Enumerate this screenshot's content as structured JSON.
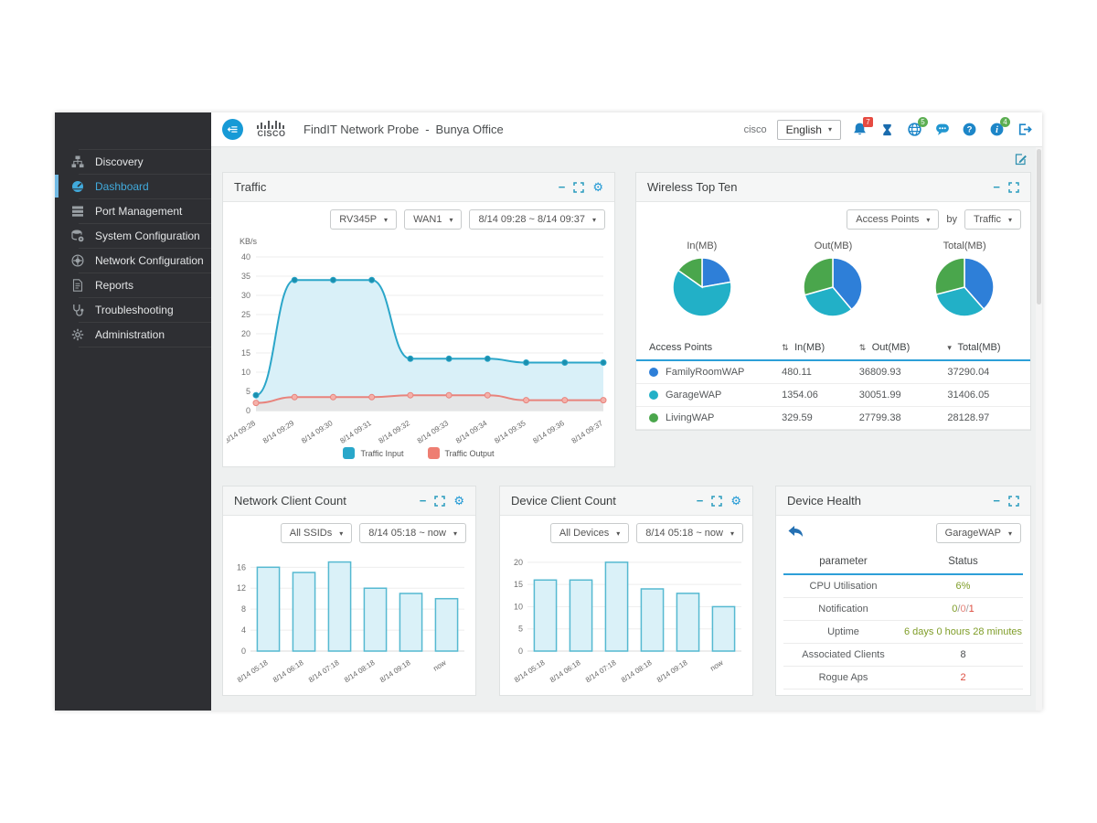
{
  "header": {
    "brand": "CISCO",
    "app_title": "FindIT Network Probe",
    "separator": "-",
    "site_name": "Bunya Office",
    "username": "cisco",
    "language": "English",
    "notification_badge": "7",
    "globe_badge": "5",
    "info_badge": "4"
  },
  "sidebar": {
    "items": [
      {
        "label": "Discovery",
        "icon": "sitemap-icon",
        "active": false
      },
      {
        "label": "Dashboard",
        "icon": "dashboard-icon",
        "active": true
      },
      {
        "label": "Port Management",
        "icon": "rows-icon",
        "active": false
      },
      {
        "label": "System Configuration",
        "icon": "database-gear-icon",
        "active": false
      },
      {
        "label": "Network Configuration",
        "icon": "gear-circle-icon",
        "active": false
      },
      {
        "label": "Reports",
        "icon": "document-icon",
        "active": false
      },
      {
        "label": "Troubleshooting",
        "icon": "stethoscope-icon",
        "active": false
      },
      {
        "label": "Administration",
        "icon": "gear-icon",
        "active": false
      }
    ]
  },
  "panels": {
    "traffic": {
      "title": "Traffic",
      "device_filter": "RV345P",
      "interface_filter": "WAN1",
      "time_range": "8/14 09:28 ~ 8/14 09:37"
    },
    "wireless": {
      "title": "Wireless Top Ten",
      "group_filter": "Access Points",
      "by_label": "by",
      "metric_filter": "Traffic",
      "table": {
        "headers": [
          {
            "label": "Access Points",
            "sort": "none"
          },
          {
            "label": "In(MB)",
            "sort": "both"
          },
          {
            "label": "Out(MB)",
            "sort": "both"
          },
          {
            "label": "Total(MB)",
            "sort": "desc"
          }
        ],
        "rows": [
          {
            "name": "FamilyRoomWAP",
            "color": "#2e7fd8",
            "in": "480.11",
            "out": "36809.93",
            "total": "37290.04"
          },
          {
            "name": "GarageWAP",
            "color": "#22b0c7",
            "in": "1354.06",
            "out": "30051.99",
            "total": "31406.05"
          },
          {
            "name": "LivingWAP",
            "color": "#4aa64c",
            "in": "329.59",
            "out": "27799.38",
            "total": "28128.97"
          }
        ]
      }
    },
    "network_client_count": {
      "title": "Network Client Count",
      "ssid_filter": "All SSIDs",
      "time_range": "8/14 05:18 ~ now"
    },
    "device_client_count": {
      "title": "Device Client Count",
      "device_filter": "All Devices",
      "time_range": "8/14 05:18 ~ now"
    },
    "device_health": {
      "title": "Device Health",
      "device_filter": "GarageWAP",
      "headers": [
        "parameter",
        "Status"
      ],
      "rows": [
        {
          "parameter": "CPU Utilisation",
          "status_parts": [
            {
              "text": "6%",
              "color": "#7f9d28"
            }
          ]
        },
        {
          "parameter": "Notification",
          "status_parts": [
            {
              "text": "0",
              "color": "#7f9d28"
            },
            {
              "text": "/",
              "color": "#9b9b9b"
            },
            {
              "text": "0",
              "color": "#e4837a"
            },
            {
              "text": "/",
              "color": "#9b9b9b"
            },
            {
              "text": "1",
              "color": "#dd4b3e"
            }
          ]
        },
        {
          "parameter": "Uptime",
          "status_parts": [
            {
              "text": "6 days 0 hours 28 minutes",
              "color": "#7f9d28"
            }
          ]
        },
        {
          "parameter": "Associated Clients",
          "status_parts": [
            {
              "text": "8",
              "color": "#4a4d4f"
            }
          ]
        },
        {
          "parameter": "Rogue Aps",
          "status_parts": [
            {
              "text": "2",
              "color": "#dd4b3e"
            }
          ]
        }
      ]
    }
  },
  "chart_data": [
    {
      "type": "line",
      "title": "Traffic",
      "ylabel": "KB/s",
      "ylim": [
        0,
        40
      ],
      "yticks": [
        0,
        5,
        10,
        15,
        20,
        25,
        30,
        35,
        40
      ],
      "x": [
        "8/14 09:28",
        "8/14 09:29",
        "8/14 09:30",
        "8/14 09:31",
        "8/14 09:32",
        "8/14 09:33",
        "8/14 09:34",
        "8/14 09:35",
        "8/14 09:36",
        "8/14 09:37"
      ],
      "grid": true,
      "legend_position": "bottom",
      "series": [
        {
          "name": "Traffic Input",
          "line_color": "#2ba6c9",
          "marker_color": "#1b8fae",
          "fill_color": "#d9f0f8",
          "values": [
            4,
            34,
            34,
            34,
            13.5,
            13.5,
            13.5,
            12.5,
            12.5,
            12.5
          ]
        },
        {
          "name": "Traffic Output",
          "line_color": "#e8837c",
          "marker_color": "#f4b1aa",
          "fill_color": "#e4e5e6",
          "values": [
            2,
            3.5,
            3.5,
            3.5,
            4,
            4,
            4,
            2.7,
            2.7,
            2.7
          ]
        }
      ]
    },
    {
      "type": "pie",
      "title": "In(MB)",
      "labels": [
        "FamilyRoomWAP",
        "GarageWAP",
        "LivingWAP"
      ],
      "values": [
        480.11,
        1354.06,
        329.59
      ],
      "colors": [
        "#2e7fd8",
        "#22b0c7",
        "#4aa64c"
      ]
    },
    {
      "type": "pie",
      "title": "Out(MB)",
      "labels": [
        "FamilyRoomWAP",
        "GarageWAP",
        "LivingWAP"
      ],
      "values": [
        36809.93,
        30051.99,
        27799.38
      ],
      "colors": [
        "#2e7fd8",
        "#22b0c7",
        "#4aa64c"
      ]
    },
    {
      "type": "pie",
      "title": "Total(MB)",
      "labels": [
        "FamilyRoomWAP",
        "GarageWAP",
        "LivingWAP"
      ],
      "values": [
        37290.04,
        31406.05,
        28128.97
      ],
      "colors": [
        "#2e7fd8",
        "#22b0c7",
        "#4aa64c"
      ]
    },
    {
      "type": "bar",
      "title": "Network Client Count",
      "categories": [
        "8/14 05:18",
        "8/14 06:18",
        "8/14 07:18",
        "8/14 08:18",
        "8/14 09:18",
        "now"
      ],
      "values": [
        16,
        15,
        17,
        12,
        11,
        10
      ],
      "yticks": [
        0,
        4,
        8,
        12,
        16
      ],
      "ylim": [
        0,
        17.8
      ],
      "bar_fill": "#daf1f8",
      "bar_stroke": "#55b9d1"
    },
    {
      "type": "bar",
      "title": "Device Client Count",
      "categories": [
        "8/14 05:18",
        "8/14 06:18",
        "8/14 07:18",
        "8/14 08:18",
        "8/14 09:18",
        "now"
      ],
      "values": [
        16,
        16,
        20,
        14,
        13,
        10
      ],
      "yticks": [
        0,
        5,
        10,
        15,
        20
      ],
      "ylim": [
        0,
        21
      ],
      "bar_fill": "#daf1f8",
      "bar_stroke": "#55b9d1"
    }
  ]
}
